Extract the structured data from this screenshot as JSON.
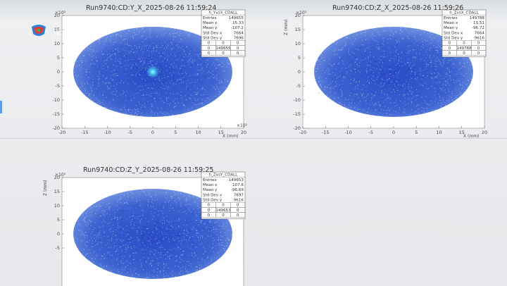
{
  "chart_data": [
    {
      "type": "heatmap",
      "title": "Run9740:CD:Y_X_2025-08-26 11:59:24",
      "xlabel": "X (mm)",
      "ylabel": "",
      "x_exponent": "×10³",
      "y_exponent": "×10³",
      "xlim": [
        -20,
        20
      ],
      "ylim": [
        -20,
        20
      ],
      "xticks": [
        "-20",
        "-15",
        "-10",
        "-5",
        "0",
        "5",
        "10",
        "15",
        "20"
      ],
      "yticks": [
        "20",
        "15",
        "10",
        "5",
        "0",
        "-5",
        "-10",
        "-15",
        "-20"
      ],
      "hotspot": true,
      "stats": {
        "name": "h_YvsX_CDALL",
        "rows": [
          [
            "Entries",
            "149655"
          ],
          [
            "Mean x",
            "15.33"
          ],
          [
            "Mean y",
            "-107.2"
          ],
          [
            "Std Dev x",
            "7664"
          ],
          [
            "Std Dev y",
            "7696"
          ]
        ],
        "grid": [
          [
            "0",
            "0",
            "0"
          ],
          [
            "0",
            "149655",
            "0"
          ],
          [
            "0",
            "0",
            "0"
          ]
        ]
      }
    },
    {
      "type": "heatmap",
      "title": "Run9740:CD:Z_X_2025-08-26 11:59:26",
      "xlabel": "X (mm)",
      "ylabel": "Z (mm)",
      "x_exponent": "",
      "y_exponent": "×10³",
      "xlim": [
        -20,
        20
      ],
      "ylim": [
        -20,
        20
      ],
      "xticks": [
        "-20",
        "-15",
        "-10",
        "-5",
        "0",
        "5",
        "10",
        "15",
        "20"
      ],
      "yticks": [
        "20",
        "15",
        "10",
        "5",
        "0",
        "-5",
        "-10",
        "-15",
        "-20"
      ],
      "hotspot": false,
      "stats": {
        "name": "h_ZvsX_CDALL",
        "rows": [
          [
            "Entries",
            "149788"
          ],
          [
            "Mean x",
            "13.51"
          ],
          [
            "Mean y",
            "-96.72"
          ],
          [
            "Std Dev x",
            "7664"
          ],
          [
            "Std Dev y",
            "9616"
          ]
        ],
        "grid": [
          [
            "0",
            "0",
            "0"
          ],
          [
            "0",
            "149788",
            "0"
          ],
          [
            "0",
            "0",
            "0"
          ]
        ]
      }
    },
    {
      "type": "heatmap",
      "title": "Run9740:CD:Z_Y_2025-08-26 11:59:25",
      "xlabel": "",
      "ylabel": "Z (mm)",
      "x_exponent": "",
      "y_exponent": "×10³",
      "xlim": [
        -20,
        20
      ],
      "ylim": [
        -20,
        20
      ],
      "xticks": [],
      "yticks": [
        "20",
        "15",
        "10",
        "5",
        "0",
        "-5"
      ],
      "hotspot": false,
      "stats": {
        "name": "h_ZvsY_CDALL",
        "rows": [
          [
            "Entries",
            "149653"
          ],
          [
            "Mean x",
            "107.6"
          ],
          [
            "Mean y",
            "-96.69"
          ],
          [
            "Std Dev x",
            "7697"
          ],
          [
            "Std Dev y",
            "9616"
          ]
        ],
        "grid": [
          [
            "0",
            "0",
            "0"
          ],
          [
            "0",
            "149653",
            "0"
          ],
          [
            "0",
            "0",
            "0"
          ]
        ]
      }
    }
  ],
  "overlay": {
    "tv_text": "深圳卫视"
  }
}
